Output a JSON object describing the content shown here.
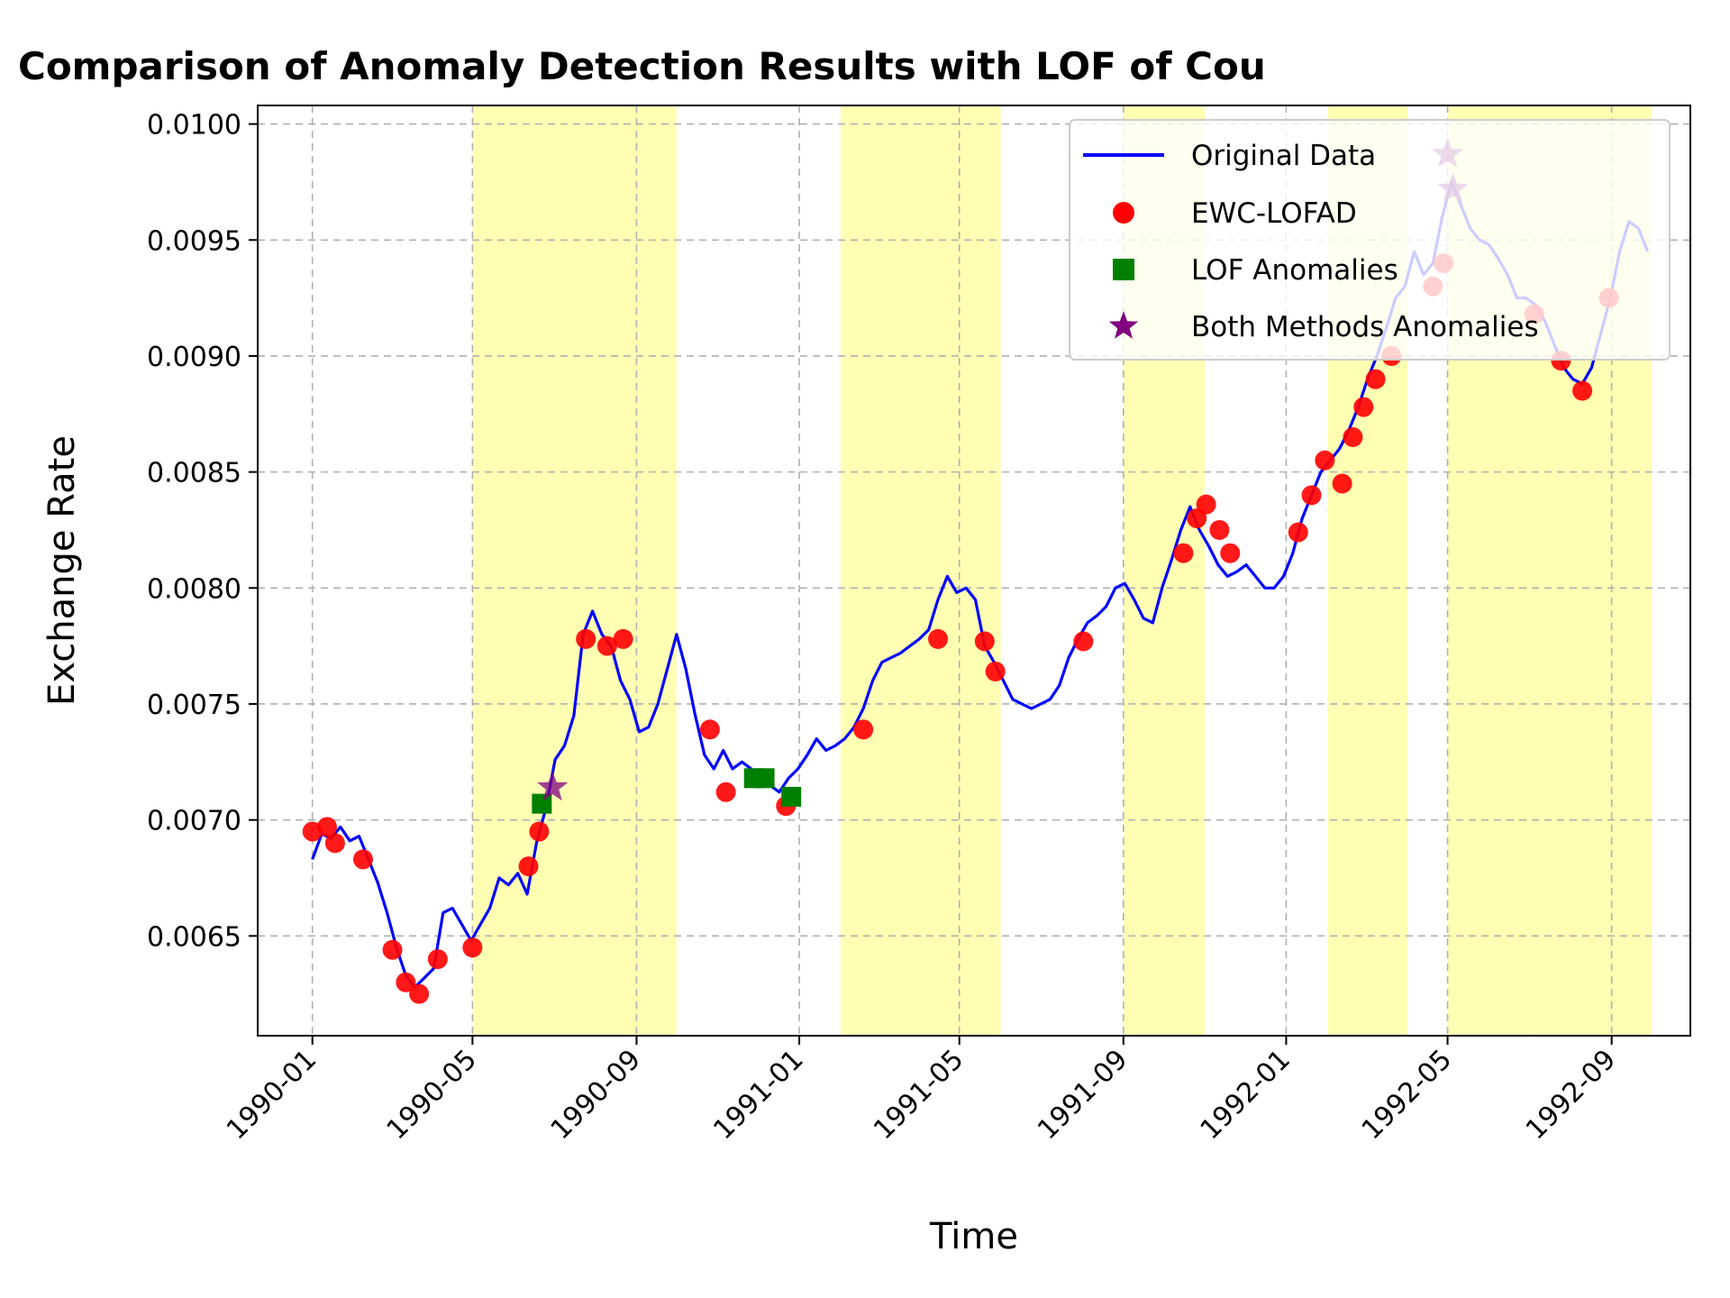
{
  "chart_data": {
    "type": "line",
    "title": "Comparison of Anomaly Detection Results with LOF of Cou",
    "xlabel": "Time",
    "ylabel": "Exchange Rate",
    "xlim": [
      "1989-11-21",
      "1992-10-30"
    ],
    "ylim": [
      0.00607,
      0.01008
    ],
    "x_ticks": [
      "1990-01",
      "1990-05",
      "1990-09",
      "1991-01",
      "1991-05",
      "1991-09",
      "1992-01",
      "1992-05",
      "1992-09"
    ],
    "y_ticks": [
      "0.0065",
      "0.0070",
      "0.0075",
      "0.0080",
      "0.0085",
      "0.0090",
      "0.0095",
      "0.0100"
    ],
    "grid": true,
    "legend_position": "top-right",
    "highlight_color": "#ffff99",
    "highlight_regions": [
      [
        "1990-05-01",
        "1990-10-01"
      ],
      [
        "1991-02-01",
        "1991-06-01"
      ],
      [
        "1991-09-01",
        "1991-11-01"
      ],
      [
        "1992-02-01",
        "1992-04-01"
      ],
      [
        "1992-05-01",
        "1992-07-01"
      ],
      [
        "1992-07-01",
        "1992-10-01"
      ]
    ],
    "series": [
      {
        "name": "Original Data",
        "kind": "line",
        "color": "#0000ff",
        "points": [
          [
            "1990-01-01",
            0.00683
          ],
          [
            "1990-01-08",
            0.00694
          ],
          [
            "1990-01-15",
            0.00692
          ],
          [
            "1990-01-22",
            0.00697
          ],
          [
            "1990-01-29",
            0.00691
          ],
          [
            "1990-02-05",
            0.00693
          ],
          [
            "1990-02-12",
            0.00683
          ],
          [
            "1990-02-19",
            0.00673
          ],
          [
            "1990-02-26",
            0.0066
          ],
          [
            "1990-03-05",
            0.00645
          ],
          [
            "1990-03-12",
            0.00633
          ],
          [
            "1990-03-19",
            0.00628
          ],
          [
            "1990-03-26",
            0.00632
          ],
          [
            "1990-04-02",
            0.00636
          ],
          [
            "1990-04-09",
            0.0066
          ],
          [
            "1990-04-16",
            0.00662
          ],
          [
            "1990-04-23",
            0.00655
          ],
          [
            "1990-04-30",
            0.00648
          ],
          [
            "1990-05-07",
            0.00655
          ],
          [
            "1990-05-14",
            0.00662
          ],
          [
            "1990-05-21",
            0.00675
          ],
          [
            "1990-05-28",
            0.00672
          ],
          [
            "1990-06-04",
            0.00677
          ],
          [
            "1990-06-11",
            0.00668
          ],
          [
            "1990-06-18",
            0.0069
          ],
          [
            "1990-06-25",
            0.00705
          ],
          [
            "1990-07-02",
            0.00726
          ],
          [
            "1990-07-09",
            0.00732
          ],
          [
            "1990-07-16",
            0.00745
          ],
          [
            "1990-07-23",
            0.0078
          ],
          [
            "1990-07-30",
            0.0079
          ],
          [
            "1990-08-06",
            0.0078
          ],
          [
            "1990-08-13",
            0.00775
          ],
          [
            "1990-08-20",
            0.0076
          ],
          [
            "1990-08-27",
            0.00752
          ],
          [
            "1990-09-03",
            0.00738
          ],
          [
            "1990-09-10",
            0.0074
          ],
          [
            "1990-09-17",
            0.0075
          ],
          [
            "1990-09-24",
            0.00765
          ],
          [
            "1990-10-01",
            0.0078
          ],
          [
            "1990-10-08",
            0.00765
          ],
          [
            "1990-10-15",
            0.00745
          ],
          [
            "1990-10-22",
            0.00728
          ],
          [
            "1990-10-29",
            0.00722
          ],
          [
            "1990-11-05",
            0.0073
          ],
          [
            "1990-11-12",
            0.00722
          ],
          [
            "1990-11-19",
            0.00725
          ],
          [
            "1990-11-26",
            0.00722
          ],
          [
            "1990-12-03",
            0.0072
          ],
          [
            "1990-12-10",
            0.00715
          ],
          [
            "1990-12-17",
            0.00712
          ],
          [
            "1990-12-24",
            0.00718
          ],
          [
            "1990-12-31",
            0.00722
          ],
          [
            "1991-01-07",
            0.00728
          ],
          [
            "1991-01-14",
            0.00735
          ],
          [
            "1991-01-21",
            0.0073
          ],
          [
            "1991-01-28",
            0.00732
          ],
          [
            "1991-02-04",
            0.00735
          ],
          [
            "1991-02-11",
            0.0074
          ],
          [
            "1991-02-18",
            0.00748
          ],
          [
            "1991-02-25",
            0.0076
          ],
          [
            "1991-03-04",
            0.00768
          ],
          [
            "1991-03-11",
            0.0077
          ],
          [
            "1991-03-18",
            0.00772
          ],
          [
            "1991-03-25",
            0.00775
          ],
          [
            "1991-04-01",
            0.00778
          ],
          [
            "1991-04-08",
            0.00782
          ],
          [
            "1991-04-15",
            0.00795
          ],
          [
            "1991-04-22",
            0.00805
          ],
          [
            "1991-04-29",
            0.00798
          ],
          [
            "1991-05-06",
            0.008
          ],
          [
            "1991-05-13",
            0.00795
          ],
          [
            "1991-05-20",
            0.00775
          ],
          [
            "1991-05-27",
            0.00768
          ],
          [
            "1991-06-03",
            0.0076
          ],
          [
            "1991-06-10",
            0.00752
          ],
          [
            "1991-06-17",
            0.0075
          ],
          [
            "1991-06-24",
            0.00748
          ],
          [
            "1991-07-01",
            0.0075
          ],
          [
            "1991-07-08",
            0.00752
          ],
          [
            "1991-07-15",
            0.00758
          ],
          [
            "1991-07-22",
            0.0077
          ],
          [
            "1991-07-29",
            0.00778
          ],
          [
            "1991-08-05",
            0.00785
          ],
          [
            "1991-08-12",
            0.00788
          ],
          [
            "1991-08-19",
            0.00792
          ],
          [
            "1991-08-26",
            0.008
          ],
          [
            "1991-09-02",
            0.00802
          ],
          [
            "1991-09-09",
            0.00795
          ],
          [
            "1991-09-16",
            0.00787
          ],
          [
            "1991-09-23",
            0.00785
          ],
          [
            "1991-09-30",
            0.008
          ],
          [
            "1991-10-07",
            0.00812
          ],
          [
            "1991-10-14",
            0.00825
          ],
          [
            "1991-10-21",
            0.00835
          ],
          [
            "1991-10-28",
            0.00825
          ],
          [
            "1991-11-04",
            0.00818
          ],
          [
            "1991-11-11",
            0.0081
          ],
          [
            "1991-11-18",
            0.00805
          ],
          [
            "1991-11-25",
            0.00807
          ],
          [
            "1991-12-02",
            0.0081
          ],
          [
            "1991-12-09",
            0.00805
          ],
          [
            "1991-12-16",
            0.008
          ],
          [
            "1991-12-23",
            0.008
          ],
          [
            "1991-12-30",
            0.00805
          ],
          [
            "1992-01-06",
            0.00815
          ],
          [
            "1992-01-13",
            0.0083
          ],
          [
            "1992-01-20",
            0.0084
          ],
          [
            "1992-01-27",
            0.0085
          ],
          [
            "1992-02-03",
            0.00855
          ],
          [
            "1992-02-10",
            0.0086
          ],
          [
            "1992-02-17",
            0.00868
          ],
          [
            "1992-02-24",
            0.00878
          ],
          [
            "1992-03-02",
            0.0089
          ],
          [
            "1992-03-09",
            0.009
          ],
          [
            "1992-03-16",
            0.00912
          ],
          [
            "1992-03-23",
            0.00925
          ],
          [
            "1992-03-30",
            0.0093
          ],
          [
            "1992-04-06",
            0.00945
          ],
          [
            "1992-04-13",
            0.00935
          ],
          [
            "1992-04-20",
            0.0094
          ],
          [
            "1992-04-27",
            0.0096
          ],
          [
            "1992-05-04",
            0.00975
          ],
          [
            "1992-05-11",
            0.00965
          ],
          [
            "1992-05-18",
            0.00955
          ],
          [
            "1992-05-25",
            0.0095
          ],
          [
            "1992-06-01",
            0.00948
          ],
          [
            "1992-06-08",
            0.00942
          ],
          [
            "1992-06-15",
            0.00935
          ],
          [
            "1992-06-22",
            0.00925
          ],
          [
            "1992-06-29",
            0.00925
          ],
          [
            "1992-07-06",
            0.00922
          ],
          [
            "1992-07-13",
            0.00915
          ],
          [
            "1992-07-20",
            0.00905
          ],
          [
            "1992-07-27",
            0.00895
          ],
          [
            "1992-08-03",
            0.0089
          ],
          [
            "1992-08-10",
            0.00888
          ],
          [
            "1992-08-17",
            0.00895
          ],
          [
            "1992-08-24",
            0.0091
          ],
          [
            "1992-08-31",
            0.00925
          ],
          [
            "1992-09-07",
            0.00945
          ],
          [
            "1992-09-14",
            0.00958
          ],
          [
            "1992-09-21",
            0.00955
          ],
          [
            "1992-09-28",
            0.00945
          ]
        ]
      },
      {
        "name": "EWC-LOFAD",
        "kind": "scatter",
        "color": "#ff0000",
        "points": [
          [
            "1990-01-01",
            0.00695
          ],
          [
            "1990-01-12",
            0.00697
          ],
          [
            "1990-01-18",
            0.0069
          ],
          [
            "1990-02-08",
            0.00683
          ],
          [
            "1990-03-02",
            0.00644
          ],
          [
            "1990-03-12",
            0.0063
          ],
          [
            "1990-03-22",
            0.00625
          ],
          [
            "1990-04-05",
            0.0064
          ],
          [
            "1990-05-01",
            0.00645
          ],
          [
            "1990-06-12",
            0.0068
          ],
          [
            "1990-06-20",
            0.00695
          ],
          [
            "1990-07-25",
            0.00778
          ],
          [
            "1990-08-10",
            0.00775
          ],
          [
            "1990-08-22",
            0.00778
          ],
          [
            "1990-10-26",
            0.00739
          ],
          [
            "1990-11-07",
            0.00712
          ],
          [
            "1990-12-22",
            0.00706
          ],
          [
            "1991-02-18",
            0.00739
          ],
          [
            "1991-04-15",
            0.00778
          ],
          [
            "1991-05-20",
            0.00777
          ],
          [
            "1991-05-28",
            0.00764
          ],
          [
            "1991-08-02",
            0.00777
          ],
          [
            "1991-10-16",
            0.00815
          ],
          [
            "1991-10-26",
            0.0083
          ],
          [
            "1991-11-02",
            0.00836
          ],
          [
            "1991-11-12",
            0.00825
          ],
          [
            "1991-11-20",
            0.00815
          ],
          [
            "1992-01-10",
            0.00824
          ],
          [
            "1992-01-20",
            0.0084
          ],
          [
            "1992-01-30",
            0.00855
          ],
          [
            "1992-02-12",
            0.00845
          ],
          [
            "1992-02-20",
            0.00865
          ],
          [
            "1992-02-28",
            0.00878
          ],
          [
            "1992-03-08",
            0.0089
          ],
          [
            "1992-03-20",
            0.009
          ],
          [
            "1992-04-20",
            0.0093
          ],
          [
            "1992-04-28",
            0.0094
          ],
          [
            "1992-07-05",
            0.00918
          ],
          [
            "1992-07-25",
            0.00898
          ],
          [
            "1992-08-10",
            0.00885
          ],
          [
            "1992-08-30",
            0.00925
          ]
        ]
      },
      {
        "name": "LOF Anomalies",
        "kind": "square",
        "color": "#008000",
        "points": [
          [
            "1990-06-22",
            0.00707
          ],
          [
            "1990-11-28",
            0.00718
          ],
          [
            "1990-12-06",
            0.00718
          ],
          [
            "1990-12-26",
            0.0071
          ]
        ]
      },
      {
        "name": "Both Methods Anomalies",
        "kind": "star",
        "color": "#800080",
        "points": [
          [
            "1990-06-30",
            0.00714
          ],
          [
            "1992-05-01",
            0.00987
          ],
          [
            "1992-05-05",
            0.00972
          ]
        ]
      }
    ]
  }
}
